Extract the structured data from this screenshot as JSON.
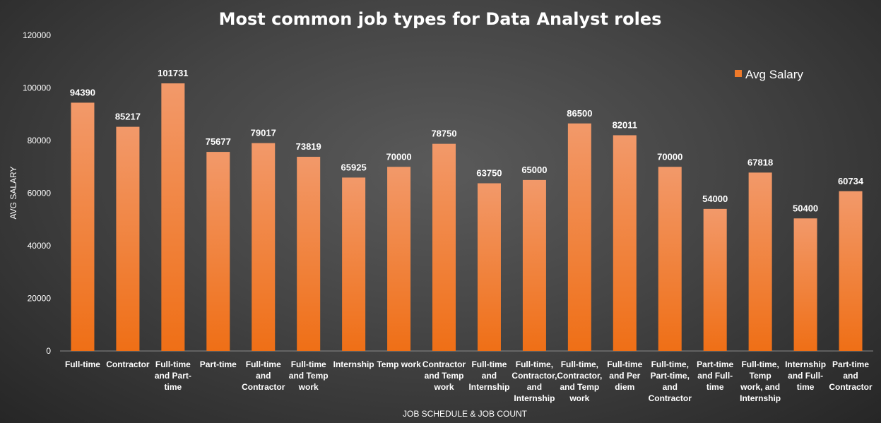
{
  "chart_data": {
    "type": "bar",
    "title": "Most common job types for Data Analyst roles",
    "xlabel": "JOB SCHEDULE & JOB COUNT",
    "ylabel": "AVG SALARY",
    "ylim": [
      0,
      120000
    ],
    "yticks": [
      0,
      20000,
      40000,
      60000,
      80000,
      100000,
      120000
    ],
    "grid": false,
    "legend_position": "top-right",
    "colors": {
      "bar_top": "#f2996a",
      "bar_bottom": "#ef6f16"
    },
    "categories": [
      [
        "Full-time"
      ],
      [
        "Contractor"
      ],
      [
        "Full-time",
        "and Part-",
        "time"
      ],
      [
        "Part-time"
      ],
      [
        "Full-time",
        "and",
        "Contractor"
      ],
      [
        "Full-time",
        "and Temp",
        "work"
      ],
      [
        "Internship"
      ],
      [
        "Temp work"
      ],
      [
        "Contractor",
        "and Temp",
        "work"
      ],
      [
        "Full-time",
        "and",
        "Internship"
      ],
      [
        "Full-time,",
        "Contractor,",
        "and",
        "Internship"
      ],
      [
        "Full-time,",
        "Contractor,",
        "and Temp",
        "work"
      ],
      [
        "Full-time",
        "and Per",
        "diem"
      ],
      [
        "Full-time,",
        "Part-time,",
        "and",
        "Contractor"
      ],
      [
        "Part-time",
        "and Full-",
        "time"
      ],
      [
        "Full-time,",
        "Temp",
        "work, and",
        "Internship"
      ],
      [
        "Internship",
        "and Full-",
        "time"
      ],
      [
        "Part-time",
        "and",
        "Contractor"
      ]
    ],
    "series": [
      {
        "name": "Avg Salary",
        "values": [
          94390,
          85217,
          101731,
          75677,
          79017,
          73819,
          65925,
          70000,
          78750,
          63750,
          65000,
          86500,
          82011,
          70000,
          54000,
          67818,
          50400,
          60734
        ]
      }
    ]
  }
}
